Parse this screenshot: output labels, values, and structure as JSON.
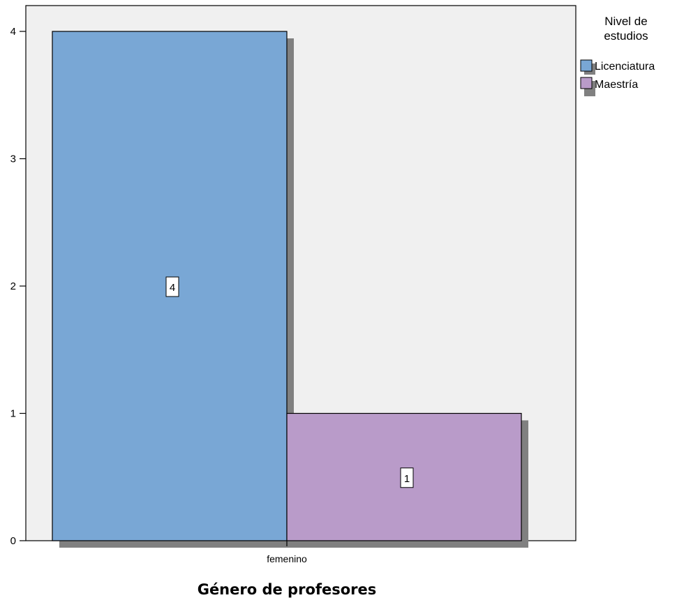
{
  "chart_data": {
    "type": "bar",
    "categories": [
      "femenino"
    ],
    "series": [
      {
        "name": "Licenciatura",
        "values": [
          4
        ],
        "color": "#79a7d5"
      },
      {
        "name": "Maestría",
        "values": [
          1
        ],
        "color": "#b99bc9"
      }
    ],
    "data_labels": [
      "4",
      "1"
    ],
    "xlabel": "Género de profesores",
    "ylabel": "",
    "ylim": [
      0,
      4
    ],
    "yticks": [
      "0",
      "1",
      "2",
      "3",
      "4"
    ],
    "legend": {
      "title_line1": "Nivel de",
      "title_line2": "estudios",
      "placement": "right"
    },
    "plot_background": "#f0f0f0",
    "grid": false
  }
}
